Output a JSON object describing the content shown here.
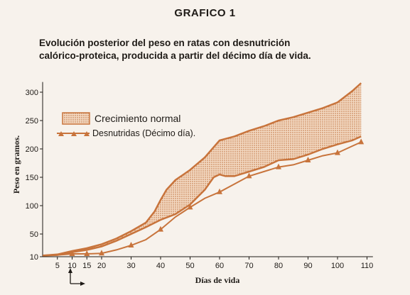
{
  "chart_data": {
    "type": "line",
    "title": "GRAFICO 1",
    "subtitle_line1": "Evolución posterior del peso en ratas con desnutrición",
    "subtitle_line2": "calórico-proteica, producida a partir del décimo día de vida.",
    "xlabel": "Días de vida",
    "ylabel": "Peso en gramos.",
    "xlim": [
      0,
      112
    ],
    "ylim": [
      10,
      320
    ],
    "x_ticks": [
      5,
      10,
      15,
      20,
      30,
      40,
      50,
      60,
      70,
      80,
      90,
      100,
      110
    ],
    "y_ticks": [
      10,
      50,
      100,
      150,
      200,
      250,
      300
    ],
    "legend": [
      {
        "label": "Crecimiento normal",
        "kind": "band"
      },
      {
        "label": "Desnutridas (Décimo día).",
        "kind": "line-triangle"
      }
    ],
    "normal_upper": {
      "x": [
        0,
        5,
        10,
        15,
        20,
        25,
        30,
        35,
        38,
        40,
        42,
        45,
        50,
        55,
        60,
        65,
        70,
        75,
        80,
        85,
        90,
        95,
        100,
        105,
        108
      ],
      "y": [
        12,
        14,
        20,
        25,
        32,
        42,
        55,
        70,
        90,
        110,
        128,
        145,
        163,
        185,
        215,
        222,
        232,
        240,
        250,
        256,
        264,
        272,
        282,
        302,
        316
      ]
    },
    "normal_lower": {
      "x": [
        0,
        5,
        10,
        15,
        20,
        25,
        30,
        35,
        40,
        45,
        50,
        55,
        58,
        60,
        62,
        65,
        70,
        75,
        80,
        85,
        90,
        95,
        100,
        105,
        108
      ],
      "y": [
        12,
        13,
        18,
        22,
        28,
        38,
        50,
        62,
        75,
        85,
        102,
        128,
        150,
        155,
        152,
        152,
        160,
        168,
        180,
        182,
        190,
        200,
        208,
        215,
        222
      ]
    },
    "series": [
      {
        "name": "Desnutridas (Décimo día).",
        "x": [
          0,
          5,
          10,
          15,
          20,
          25,
          30,
          35,
          40,
          45,
          50,
          55,
          60,
          65,
          70,
          75,
          80,
          85,
          90,
          95,
          100,
          105,
          108
        ],
        "y": [
          12,
          13,
          15,
          15,
          16,
          22,
          30,
          40,
          58,
          80,
          97,
          113,
          124,
          138,
          152,
          160,
          168,
          172,
          180,
          188,
          193,
          205,
          212
        ]
      }
    ],
    "markers_x": [
      10,
      15,
      20,
      30,
      40,
      50,
      60,
      70,
      80,
      90,
      100,
      108
    ],
    "markers_y": [
      15,
      15,
      16,
      30,
      58,
      97,
      124,
      152,
      168,
      180,
      193,
      212
    ],
    "band_color": "#d9824a",
    "line_color": "#c8743c"
  }
}
